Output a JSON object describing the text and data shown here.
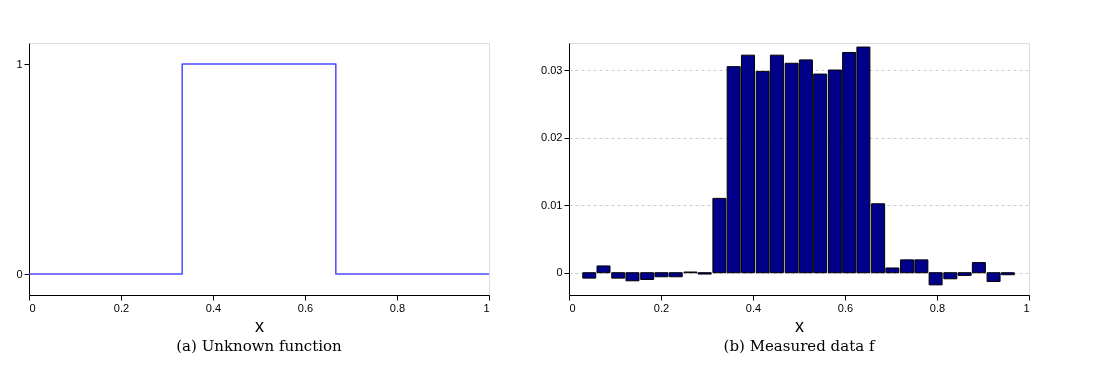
{
  "chart_data": [
    {
      "type": "line",
      "title": "(a) Unknown function",
      "xlabel": "x",
      "x": [
        0,
        0.333,
        0.333,
        0.667,
        0.667,
        1
      ],
      "values": [
        0,
        0,
        1,
        1,
        0,
        0
      ],
      "color": "#4b4bff",
      "xlim": [
        0,
        1
      ],
      "xticks": [
        0,
        0.2,
        0.4,
        0.6,
        0.8,
        1
      ],
      "ylim": [
        -0.1,
        1.1
      ],
      "yticks": [
        0,
        1
      ],
      "grid": false
    },
    {
      "type": "bar",
      "title": "(b) Measured data f",
      "xlabel": "x",
      "x": [
        0.044,
        0.075,
        0.107,
        0.138,
        0.17,
        0.201,
        0.232,
        0.264,
        0.295,
        0.327,
        0.358,
        0.389,
        0.421,
        0.452,
        0.484,
        0.515,
        0.546,
        0.578,
        0.609,
        0.64,
        0.672,
        0.703,
        0.735,
        0.766,
        0.797,
        0.829,
        0.86,
        0.891,
        0.923,
        0.954
      ],
      "values": [
        -0.0008,
        0.001,
        -0.0008,
        -0.0012,
        -0.001,
        -0.0006,
        -0.0006,
        0.0001,
        -0.0002,
        0.011,
        0.0305,
        0.0322,
        0.0298,
        0.0322,
        0.031,
        0.0315,
        0.0294,
        0.03,
        0.0326,
        0.0334,
        0.0102,
        0.0007,
        0.0019,
        0.0019,
        -0.0018,
        -0.0009,
        -0.0004,
        0.0015,
        -0.0013,
        -0.0003
      ],
      "color": "#00008b",
      "xlim": [
        0,
        1
      ],
      "xticks": [
        0,
        0.2,
        0.4,
        0.6,
        0.8,
        1
      ],
      "ylim": [
        -0.0033,
        0.034
      ],
      "yticks": [
        0,
        0.01,
        0.02,
        0.03
      ],
      "grid": "y"
    }
  ]
}
